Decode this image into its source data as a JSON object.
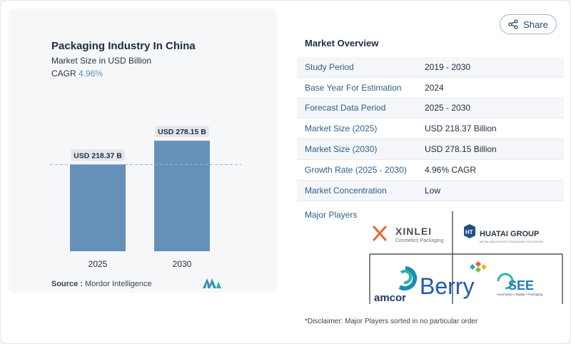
{
  "header": {
    "share_label": "Share"
  },
  "chart_data": {
    "type": "bar",
    "title": "Packaging Industry In China",
    "subtitle": "Market Size in USD Billion",
    "cagr_label": "CAGR",
    "cagr_value": "4.96%",
    "categories": [
      "2025",
      "2030"
    ],
    "values": [
      218.37,
      278.15
    ],
    "data_labels": [
      "USD 218.37 B",
      "USD 278.15 B"
    ],
    "colors": {
      "bar": "#6591b8",
      "bar_top": "#6f9bc2",
      "label_bg": "#e3e7ec",
      "dashed": "#8aa2b6"
    }
  },
  "source": {
    "label": "Source :",
    "value": "Mordor Intelligence"
  },
  "overview": {
    "title": "Market Overview",
    "rows": [
      {
        "label": "Study Period",
        "value": "2019 - 2030"
      },
      {
        "label": "Base Year For Estimation",
        "value": "2024"
      },
      {
        "label": "Forecast Data Period",
        "value": "2025 - 2030"
      },
      {
        "label": "Market Size (2025)",
        "value": "USD 218.37 Billion"
      },
      {
        "label": "Market Size (2030)",
        "value": "USD 278.15 Billion"
      },
      {
        "label": "Growth Rate (2025 - 2030)",
        "value": "4.96% CAGR"
      },
      {
        "label": "Market Concentration",
        "value": "Low"
      }
    ],
    "players_title": "Major Players",
    "players": [
      {
        "name": "XINLEI",
        "tagline": "Cosmetics Packaging"
      },
      {
        "name": "HUATAI GROUP",
        "mark": "HT",
        "tagline": "METAL AND PLASTIC PACKAGING SOLUTIONS"
      },
      {
        "name": "amcor"
      },
      {
        "name": "Berry"
      },
      {
        "name": "SEE",
        "tagline": "Automation • Digital • Packaging"
      }
    ],
    "disclaimer": "*Disclaimer: Major Players sorted in no particular order"
  }
}
